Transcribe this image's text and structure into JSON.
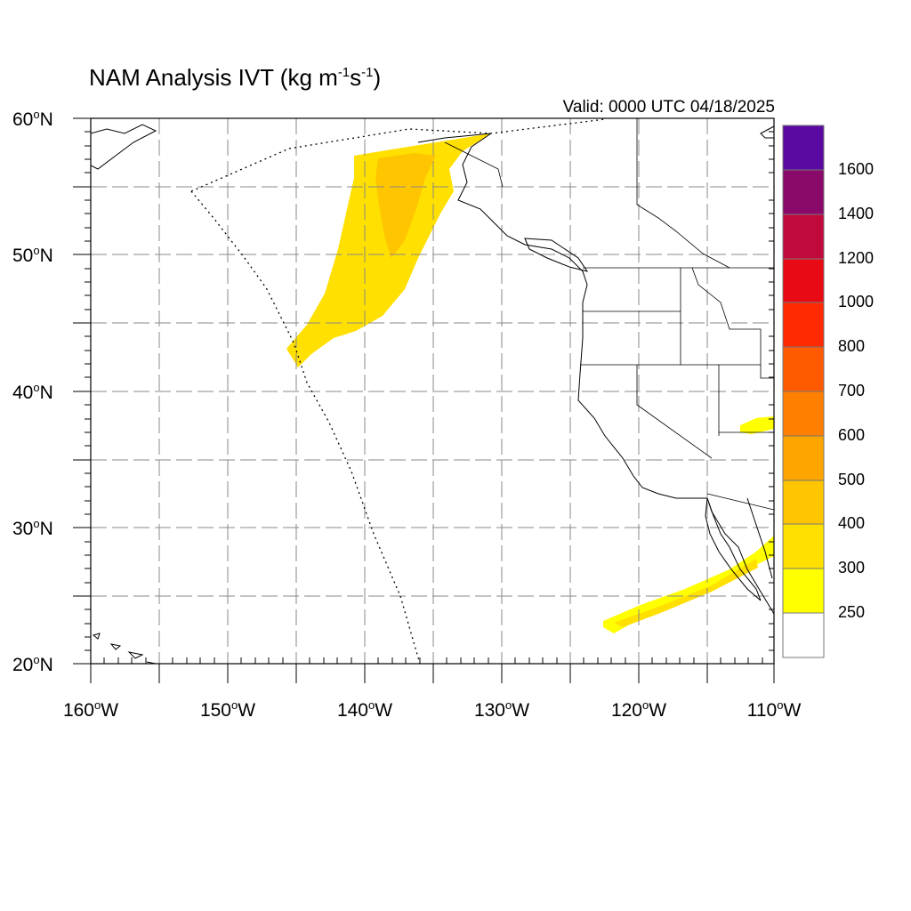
{
  "title": {
    "text": "NAM Analysis IVT (kg m",
    "sup1": "-1",
    "mid": "s",
    "sup2": "-1",
    "end": ")"
  },
  "valid": "Valid: 0000 UTC 04/18/2025",
  "lat_labels": [
    {
      "num": "60",
      "deg": "o",
      "hem": "N"
    },
    {
      "num": "50",
      "deg": "o",
      "hem": "N"
    },
    {
      "num": "40",
      "deg": "o",
      "hem": "N"
    },
    {
      "num": "30",
      "deg": "o",
      "hem": "N"
    },
    {
      "num": "20",
      "deg": "o",
      "hem": "N"
    }
  ],
  "lon_labels": [
    {
      "num": "160",
      "deg": "o",
      "hem": "W"
    },
    {
      "num": "150",
      "deg": "o",
      "hem": "W"
    },
    {
      "num": "140",
      "deg": "o",
      "hem": "W"
    },
    {
      "num": "130",
      "deg": "o",
      "hem": "W"
    },
    {
      "num": "120",
      "deg": "o",
      "hem": "W"
    },
    {
      "num": "110",
      "deg": "o",
      "hem": "W"
    }
  ],
  "colorbar": {
    "labels": [
      "1600",
      "1400",
      "1200",
      "1000",
      "800",
      "700",
      "600",
      "500",
      "400",
      "300",
      "250"
    ],
    "colors": [
      "#5a0aa0",
      "#8a0a6a",
      "#c00a3c",
      "#e80a14",
      "#ff2a00",
      "#ff5a00",
      "#ff7f00",
      "#ffa500",
      "#ffc500",
      "#ffe000",
      "#ffff00",
      "#ffffff"
    ]
  },
  "map": {
    "lat_range": [
      20,
      60
    ],
    "lon_range": [
      -160,
      -110
    ],
    "gridline_spacing_deg": 5,
    "contour_colors": {
      "light": "#ffe000",
      "darker": "#ffc500"
    }
  }
}
